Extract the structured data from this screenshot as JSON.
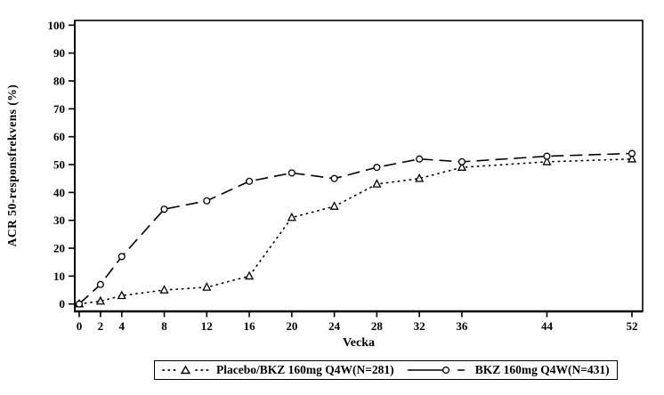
{
  "chart_data": {
    "type": "line",
    "title": "",
    "xlabel": "Vecka",
    "ylabel": "ACR 50-responsfrekvens  (%)",
    "xlim": [
      0,
      52
    ],
    "ylim": [
      0,
      100
    ],
    "grid": false,
    "legend_position": "bottom-center",
    "x_ticks": [
      0,
      2,
      4,
      8,
      12,
      16,
      20,
      24,
      28,
      32,
      36,
      44,
      52
    ],
    "y_ticks": [
      0,
      10,
      20,
      30,
      40,
      50,
      60,
      70,
      80,
      90,
      100
    ],
    "categories": [
      0,
      2,
      4,
      8,
      12,
      16,
      20,
      24,
      28,
      32,
      36,
      44,
      52
    ],
    "series": [
      {
        "name": "Placebo/BKZ 160mg Q4W(N=281)",
        "marker": "triangle",
        "line_style": "dotted",
        "color": "#000000",
        "values": [
          0,
          1,
          3,
          5,
          6,
          10,
          31,
          35,
          43,
          45,
          49,
          51,
          52
        ]
      },
      {
        "name": "BKZ 160mg Q4W(N=431)",
        "marker": "circle",
        "line_style": "long-dash",
        "color": "#000000",
        "values": [
          0,
          7,
          17,
          34,
          37,
          44,
          47,
          45,
          49,
          52,
          51,
          53,
          54
        ]
      }
    ]
  },
  "colors": {
    "axis": "#000000",
    "background": "#ffffff",
    "text": "#000000"
  }
}
